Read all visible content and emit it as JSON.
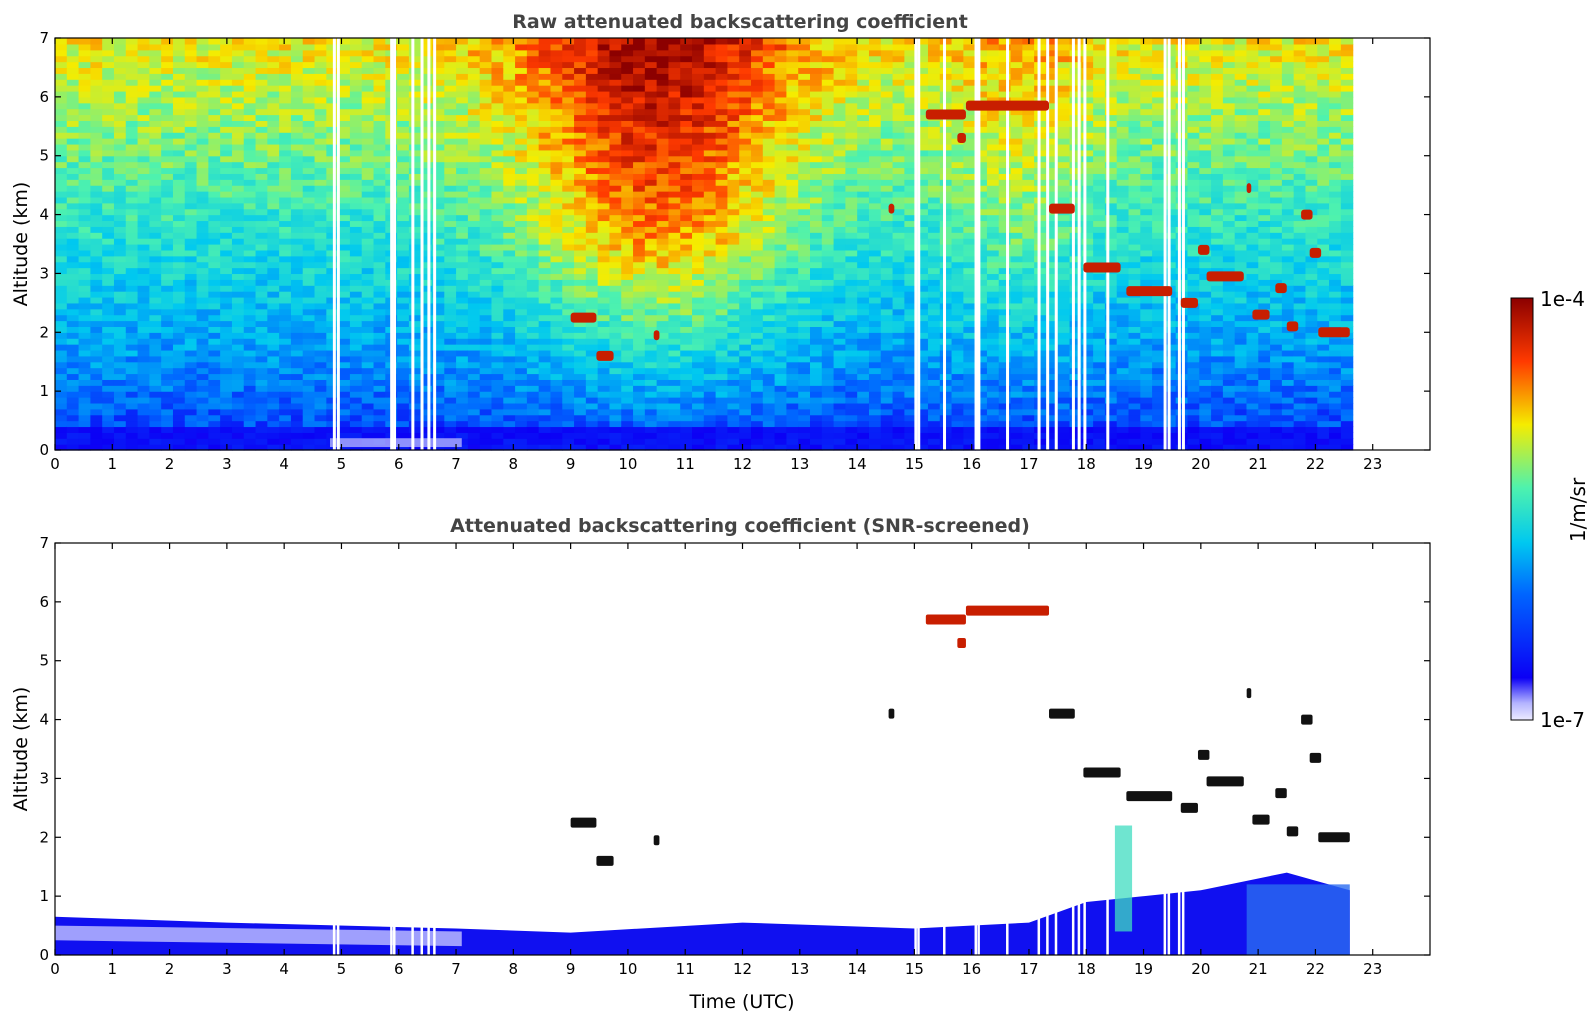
{
  "colors": {
    "colormap": [
      "#ecebff",
      "#0b00f5",
      "#00c8f0",
      "#4ef2ae",
      "#f5ec00",
      "#ff3a00",
      "#8b0000"
    ],
    "cloud": "#c81e00",
    "frame": "#000000"
  },
  "colorbar": {
    "max_label": "1e-4",
    "min_label": "1e-7",
    "unit_label": "1/m/sr",
    "scale": "log"
  },
  "chart_data": [
    {
      "type": "heatmap",
      "title": "Raw attenuated backscattering coefficient",
      "xlabel": "",
      "ylabel": "Altitude (km)",
      "xlim": [
        0,
        24
      ],
      "ylim": [
        0,
        7
      ],
      "x_ticks": [
        "0",
        "1",
        "2",
        "3",
        "4",
        "5",
        "6",
        "7",
        "8",
        "9",
        "10",
        "11",
        "12",
        "13",
        "14",
        "15",
        "16",
        "17",
        "18",
        "19",
        "20",
        "21",
        "22",
        "23"
      ],
      "y_ticks": [
        "0",
        "1",
        "2",
        "3",
        "4",
        "5",
        "6",
        "7"
      ],
      "data_end_time": 22.65,
      "boundary_layer_top_km": 0.4,
      "gaps_utc": [
        4.85,
        4.92,
        5.85,
        5.9,
        6.22,
        6.38,
        6.5,
        6.6,
        15.0,
        15.05,
        15.5,
        16.05,
        16.1,
        16.6,
        17.15,
        17.3,
        17.45,
        17.75,
        17.85,
        17.95,
        18.35,
        19.35,
        19.42,
        19.6,
        19.67
      ],
      "cloud_layers": [
        {
          "t0": 9.0,
          "t1": 9.45,
          "altitude_km": 2.25
        },
        {
          "t0": 9.45,
          "t1": 9.75,
          "altitude_km": 1.6
        },
        {
          "t0": 10.45,
          "t1": 10.55,
          "altitude_km": 1.95
        },
        {
          "t0": 14.55,
          "t1": 14.65,
          "altitude_km": 4.1
        },
        {
          "t0": 15.2,
          "t1": 15.9,
          "altitude_km": 5.7
        },
        {
          "t0": 15.9,
          "t1": 17.35,
          "altitude_km": 5.85
        },
        {
          "t0": 15.75,
          "t1": 15.9,
          "altitude_km": 5.3
        },
        {
          "t0": 17.35,
          "t1": 17.8,
          "altitude_km": 4.1
        },
        {
          "t0": 17.95,
          "t1": 18.6,
          "altitude_km": 3.1
        },
        {
          "t0": 18.7,
          "t1": 19.5,
          "altitude_km": 2.7
        },
        {
          "t0": 19.65,
          "t1": 19.95,
          "altitude_km": 2.5
        },
        {
          "t0": 19.95,
          "t1": 20.15,
          "altitude_km": 3.4
        },
        {
          "t0": 20.1,
          "t1": 20.75,
          "altitude_km": 2.95
        },
        {
          "t0": 20.8,
          "t1": 20.88,
          "altitude_km": 4.45
        },
        {
          "t0": 20.9,
          "t1": 21.2,
          "altitude_km": 2.3
        },
        {
          "t0": 21.3,
          "t1": 21.5,
          "altitude_km": 2.75
        },
        {
          "t0": 21.5,
          "t1": 21.7,
          "altitude_km": 2.1
        },
        {
          "t0": 21.75,
          "t1": 21.95,
          "altitude_km": 4.0
        },
        {
          "t0": 21.9,
          "t1": 22.1,
          "altitude_km": 3.35
        },
        {
          "t0": 22.05,
          "t1": 22.6,
          "altitude_km": 2.0
        }
      ]
    },
    {
      "type": "heatmap",
      "title": "Attenuated backscattering coefficient (SNR-screened)",
      "xlabel": "Time (UTC)",
      "ylabel": "Altitude (km)",
      "xlim": [
        0,
        24
      ],
      "ylim": [
        0,
        7
      ],
      "x_ticks": [
        "0",
        "1",
        "2",
        "3",
        "4",
        "5",
        "6",
        "7",
        "8",
        "9",
        "10",
        "11",
        "12",
        "13",
        "14",
        "15",
        "16",
        "17",
        "18",
        "19",
        "20",
        "21",
        "22",
        "23"
      ],
      "y_ticks": [
        "0",
        "1",
        "2",
        "3",
        "4",
        "5",
        "6",
        "7"
      ],
      "data_end_time": 22.65,
      "boundary_layer": [
        {
          "t": 0,
          "top_km": 0.65
        },
        {
          "t": 3,
          "top_km": 0.55
        },
        {
          "t": 7,
          "top_km": 0.45
        },
        {
          "t": 9,
          "top_km": 0.38
        },
        {
          "t": 12,
          "top_km": 0.55
        },
        {
          "t": 15,
          "top_km": 0.45
        },
        {
          "t": 17,
          "top_km": 0.55
        },
        {
          "t": 18,
          "top_km": 0.9
        },
        {
          "t": 20,
          "top_km": 1.1
        },
        {
          "t": 21.5,
          "top_km": 1.4
        },
        {
          "t": 22.6,
          "top_km": 1.1
        }
      ]
    }
  ]
}
